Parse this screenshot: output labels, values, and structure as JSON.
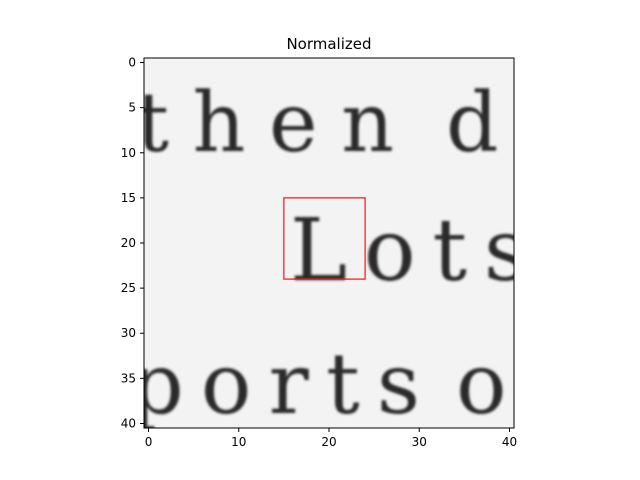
{
  "chart_data": {
    "type": "heatmap",
    "title": "Normalized",
    "xlabel": "",
    "ylabel": "",
    "colormap": "gray",
    "xlim": [
      -0.5,
      40.5
    ],
    "ylim": [
      40.5,
      -0.5
    ],
    "x_ticks": [
      0,
      10,
      20,
      30,
      40
    ],
    "y_ticks": [
      0,
      5,
      10,
      15,
      20,
      25,
      30,
      35,
      40
    ],
    "grid": false,
    "legend": "none",
    "image_content": {
      "description_lines": [
        "then  d",
        "Lots",
        "ports  o"
      ],
      "rows": [
        {
          "text": "then",
          "row_range": [
            0,
            10
          ]
        },
        {
          "text": "Lots",
          "row_range": [
            15,
            24
          ]
        },
        {
          "text": "ports",
          "row_range": [
            32,
            40
          ]
        }
      ]
    },
    "highlight_box": {
      "x0": 15,
      "y0": 15,
      "x1": 24,
      "y1": 24,
      "color": "#e8191b"
    }
  }
}
